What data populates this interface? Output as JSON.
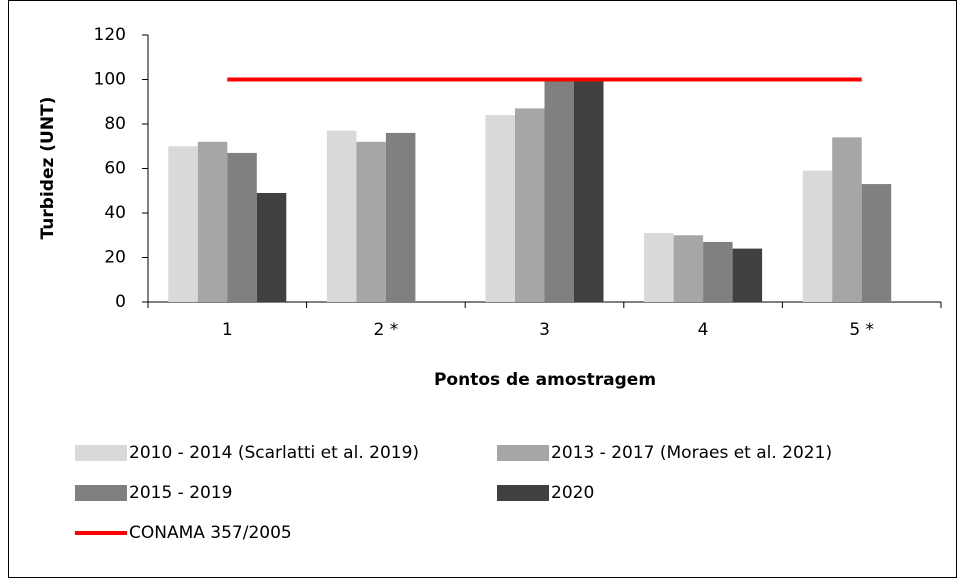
{
  "chart_data": {
    "type": "bar",
    "categories": [
      "1",
      "2 *",
      "3",
      "4",
      "5 *"
    ],
    "x_label": "Pontos de amostragem",
    "y_label": "Turbidez (UNT)",
    "ylim": [
      0,
      120
    ],
    "yticks": [
      0,
      20,
      40,
      60,
      80,
      100,
      120
    ],
    "series": [
      {
        "name": "2010 - 2014 (Scarlatti et al. 2019)",
        "color": "#d9d9d9",
        "type": "bar",
        "values": [
          70,
          77,
          84,
          31,
          59
        ]
      },
      {
        "name": "2013 - 2017 (Moraes et al. 2021)",
        "color": "#a6a6a6",
        "type": "bar",
        "values": [
          72,
          72,
          87,
          30,
          74
        ]
      },
      {
        "name": "2015 - 2019",
        "color": "#808080",
        "type": "bar",
        "values": [
          67,
          76,
          100,
          27,
          53
        ]
      },
      {
        "name": "2020",
        "color": "#404040",
        "type": "bar",
        "values": [
          49,
          null,
          100,
          24,
          null
        ]
      },
      {
        "name": "CONAMA 357/2005",
        "color": "#ff0000",
        "type": "line",
        "values": [
          100,
          100,
          100,
          100,
          100
        ]
      }
    ]
  }
}
